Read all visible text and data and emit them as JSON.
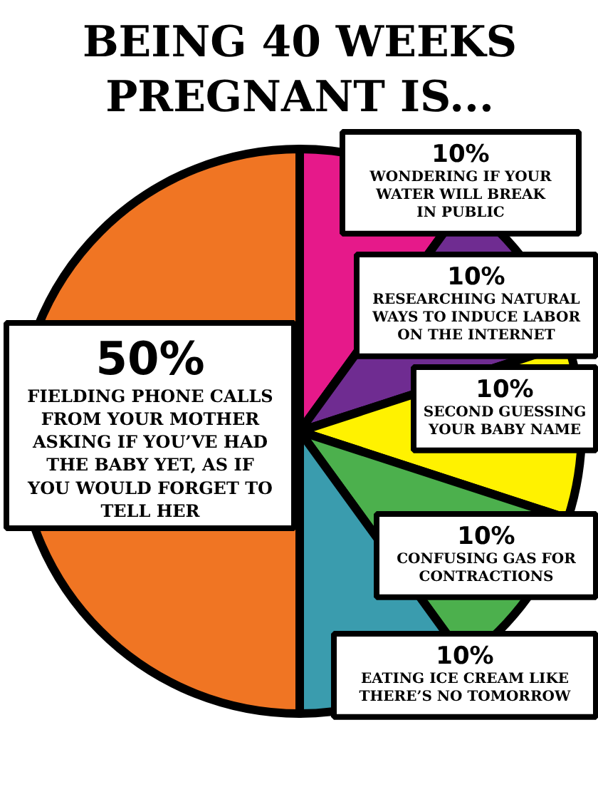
{
  "chart_data": {
    "type": "pie",
    "title": "BEING 40 WEEKS PREGNANT IS...",
    "categories": [
      "WONDERING IF YOUR WATER WILL BREAK IN PUBLIC",
      "RESEARCHING NATURAL WAYS TO INDUCE LABOR ON THE INTERNET",
      "SECOND GUESSING YOUR BABY NAME",
      "CONFUSING GAS FOR CONTRACTIONS",
      "EATING ICE CREAM LIKE THERE’S NO TOMORROW",
      "FIELDING PHONE CALLS FROM YOUR MOTHER ASKING IF YOU’VE HAD THE BABY YET, AS IF YOU WOULD FORGET TO TELL HER"
    ],
    "values": [
      10,
      10,
      10,
      10,
      10,
      50
    ],
    "value_labels": [
      "10%",
      "10%",
      "10%",
      "10%",
      "10%",
      "50%"
    ],
    "colors": [
      "#e6198a",
      "#6f2c91",
      "#fff200",
      "#4cb04d",
      "#3a9cae",
      "#f07523"
    ]
  }
}
